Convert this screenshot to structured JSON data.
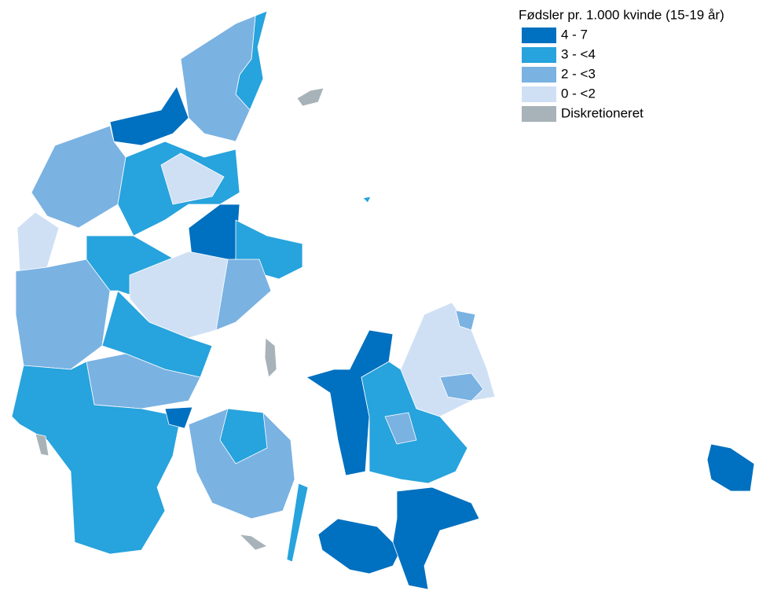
{
  "legend": {
    "title": "Fødsler pr. 1.000 kvinde (15-19 år)",
    "items": [
      {
        "label": "4 - 7",
        "color": "#0070c0"
      },
      {
        "label": "3 - <4",
        "color": "#27a3dd"
      },
      {
        "label": "2 - <3",
        "color": "#7ab2e2"
      },
      {
        "label": "0 - <2",
        "color": "#cfe0f5"
      },
      {
        "label": "Diskretioneret",
        "color": "#a7b3b8"
      }
    ]
  }
}
